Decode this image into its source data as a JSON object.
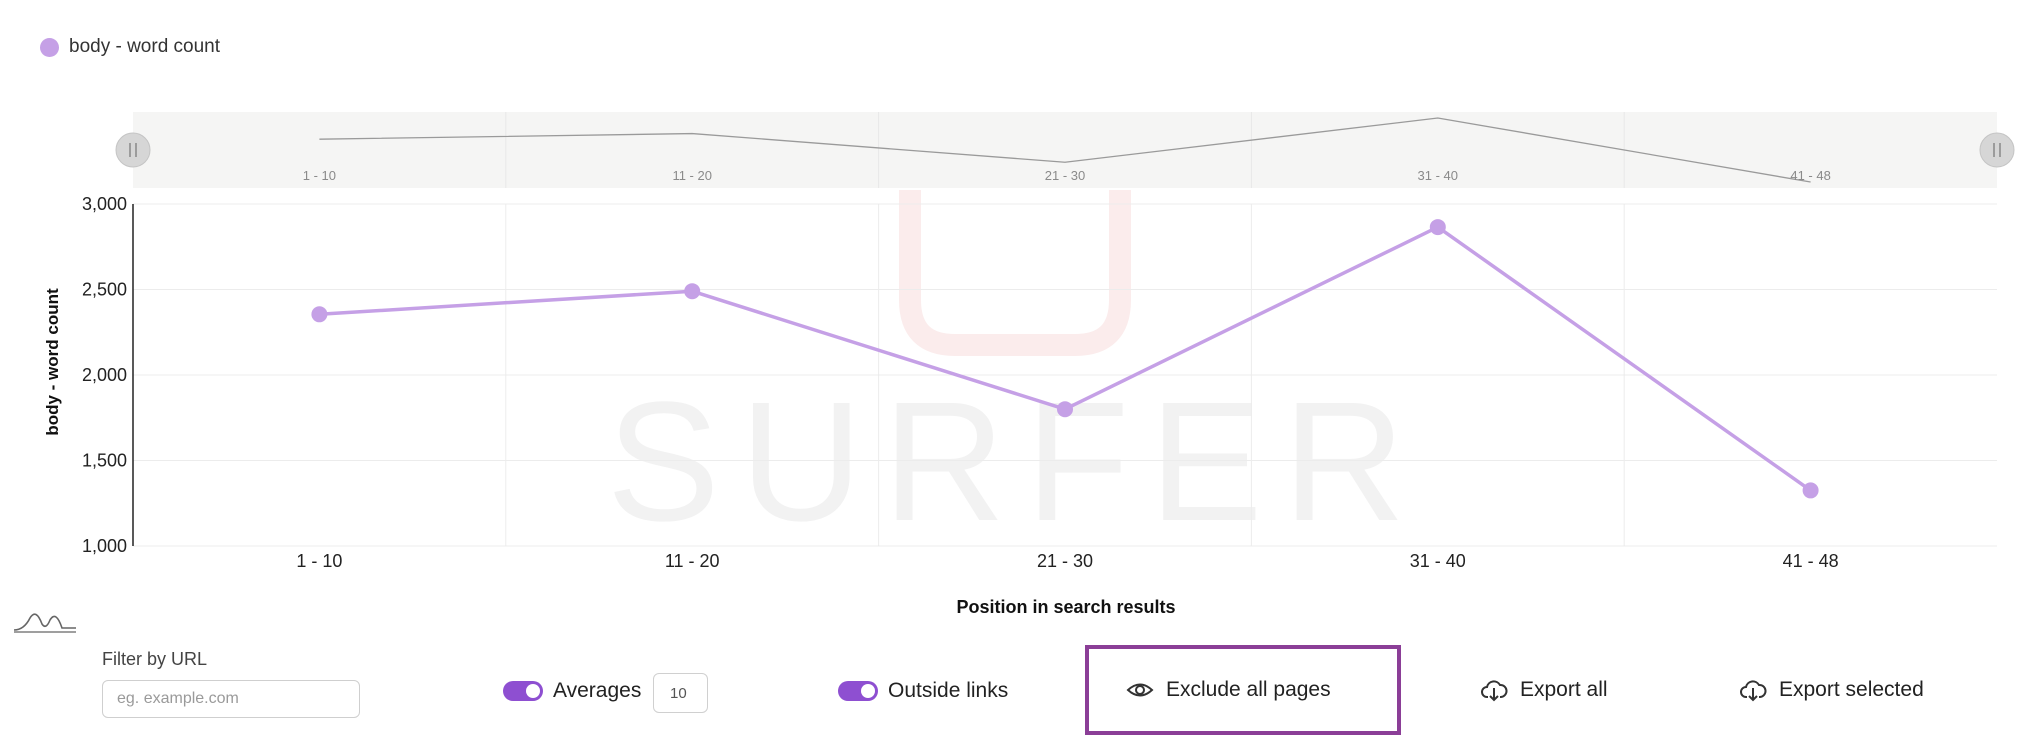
{
  "watermark": "SURFER",
  "chart_data": {
    "type": "line",
    "categories": [
      "1 - 10",
      "11 - 20",
      "21 - 30",
      "31 - 40",
      "41 - 48"
    ],
    "series": [
      {
        "name": "body - word count",
        "values": [
          2355,
          2490,
          1800,
          2865,
          1325
        ],
        "color": "#c5a0e6"
      }
    ],
    "xlabel": "Position in search results",
    "ylabel": "body - word count",
    "ylim": [
      1000,
      3000
    ],
    "yticks": [
      1000,
      1500,
      2000,
      2500,
      3000
    ],
    "ytick_labels": [
      "1,000",
      "1,500",
      "2,000",
      "2,500",
      "3,000"
    ],
    "legend": "top-left",
    "grid": true,
    "navigator": true
  },
  "controls": {
    "filter_label": "Filter by URL",
    "filter_placeholder": "eg. example.com",
    "averages_label": "Averages",
    "averages_value": "10",
    "outside_links_label": "Outside links",
    "exclude_label": "Exclude all pages",
    "export_all_label": "Export all",
    "export_selected_label": "Export selected"
  },
  "colors": {
    "accent": "#8e4fd1",
    "line": "#c5a0e6",
    "highlight": "#8b3e97"
  }
}
